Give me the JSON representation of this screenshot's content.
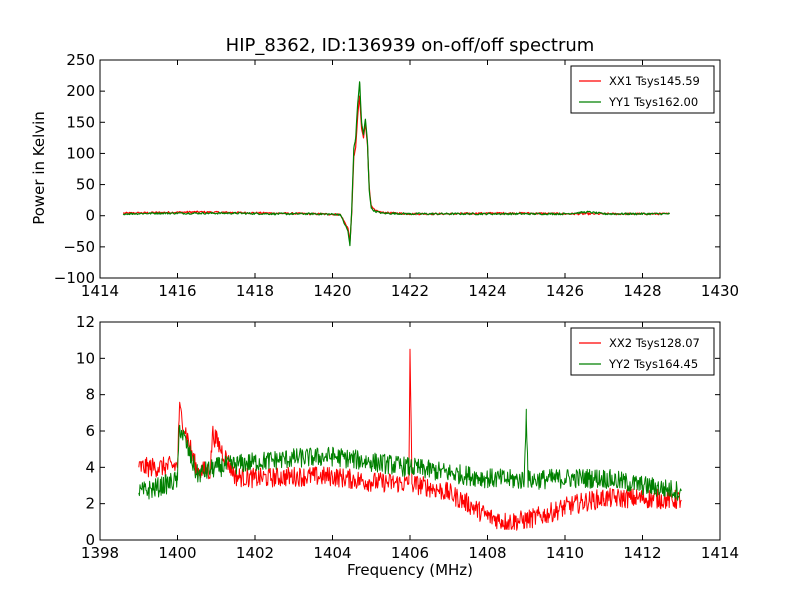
{
  "figure": {
    "title": "HIP_8362, ID:136939 on-off/off spectrum",
    "xlabel": "Frequency (MHz)",
    "ylabel": "Power in Kelvin"
  },
  "chart_data": [
    {
      "type": "line",
      "xlim": [
        1414,
        1430
      ],
      "ylim": [
        -100,
        250
      ],
      "x_ticks": [
        1414,
        1416,
        1418,
        1420,
        1422,
        1424,
        1426,
        1428,
        1430
      ],
      "y_ticks": [
        -100,
        -50,
        0,
        50,
        100,
        150,
        200,
        250
      ],
      "legend_position": "top-right",
      "series": [
        {
          "name": "XX1 Tsys145.59",
          "color": "#ff0000",
          "x": [
            1414.6,
            1415.5,
            1416.5,
            1417.5,
            1418.5,
            1419.5,
            1420.2,
            1420.4,
            1420.45,
            1420.5,
            1420.55,
            1420.6,
            1420.65,
            1420.7,
            1420.75,
            1420.8,
            1420.85,
            1420.9,
            1420.95,
            1421.0,
            1421.1,
            1421.3,
            1422.0,
            1423.0,
            1424.0,
            1425.0,
            1426.0,
            1427.0,
            1428.0,
            1428.7
          ],
          "y": [
            4,
            5,
            6,
            5,
            4,
            3,
            2,
            -20,
            -42,
            8,
            95,
            110,
            160,
            192,
            140,
            125,
            150,
            115,
            45,
            15,
            8,
            5,
            3,
            3,
            4,
            4,
            3,
            3,
            3,
            3
          ]
        },
        {
          "name": "YY1 Tsys162.00",
          "color": "#008000",
          "x": [
            1414.6,
            1415.5,
            1416.5,
            1417.5,
            1418.5,
            1419.5,
            1420.2,
            1420.4,
            1420.45,
            1420.5,
            1420.55,
            1420.6,
            1420.65,
            1420.7,
            1420.75,
            1420.8,
            1420.85,
            1420.9,
            1420.95,
            1421.0,
            1421.1,
            1421.3,
            1422.0,
            1423.0,
            1424.0,
            1425.0,
            1426.0,
            1426.6,
            1427.0,
            1428.0,
            1428.7
          ],
          "y": [
            3,
            4,
            4,
            4,
            3,
            3,
            2,
            -25,
            -48,
            15,
            108,
            125,
            180,
            215,
            150,
            130,
            155,
            120,
            40,
            12,
            7,
            4,
            3,
            3,
            3,
            3,
            3,
            6,
            3,
            3,
            3
          ]
        }
      ]
    },
    {
      "type": "line",
      "xlim": [
        1398,
        1414
      ],
      "ylim": [
        0,
        12
      ],
      "x_ticks": [
        1398,
        1400,
        1402,
        1404,
        1406,
        1408,
        1410,
        1412,
        1414
      ],
      "y_ticks": [
        0,
        2,
        4,
        6,
        8,
        10,
        12
      ],
      "legend_position": "top-right",
      "series": [
        {
          "name": "XX2 Tsys128.07",
          "color": "#ff0000",
          "x": [
            1399.0,
            1399.5,
            1400.0,
            1400.05,
            1400.5,
            1400.85,
            1400.9,
            1401.5,
            1402.0,
            1403.0,
            1404.0,
            1405.0,
            1405.97,
            1406.0,
            1406.05,
            1406.5,
            1407.0,
            1407.5,
            1408.0,
            1408.5,
            1409.0,
            1409.5,
            1410.0,
            1410.5,
            1411.0,
            1412.0,
            1413.0
          ],
          "y": [
            4.0,
            4.0,
            4.1,
            7.2,
            3.8,
            3.8,
            5.9,
            3.5,
            3.4,
            3.5,
            3.5,
            3.2,
            3.1,
            10.5,
            3.1,
            2.9,
            2.6,
            2.0,
            1.3,
            1.0,
            1.1,
            1.4,
            1.8,
            2.1,
            2.3,
            2.3,
            2.2
          ]
        },
        {
          "name": "YY2 Tsys164.45",
          "color": "#008000",
          "x": [
            1399.0,
            1399.5,
            1400.0,
            1400.05,
            1400.5,
            1401.0,
            1402.0,
            1403.0,
            1404.0,
            1405.0,
            1406.0,
            1407.0,
            1408.0,
            1408.95,
            1409.0,
            1409.05,
            1410.0,
            1411.0,
            1412.0,
            1413.0
          ],
          "y": [
            2.6,
            2.9,
            3.3,
            6.3,
            3.6,
            4.0,
            4.3,
            4.5,
            4.6,
            4.3,
            4.0,
            3.7,
            3.4,
            3.3,
            7.2,
            3.3,
            3.4,
            3.4,
            3.0,
            2.7
          ]
        }
      ]
    }
  ]
}
